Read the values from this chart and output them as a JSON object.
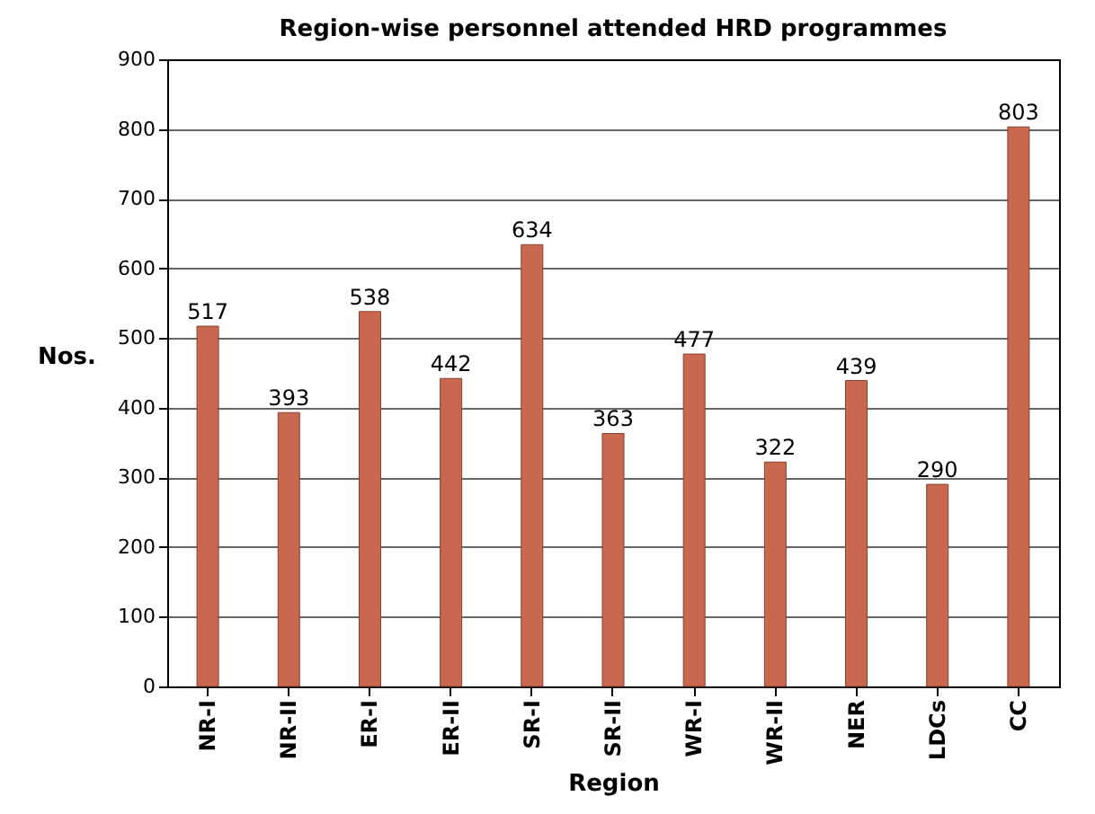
{
  "chart_data": {
    "type": "bar",
    "title": "Region-wise personnel attended HRD programmes",
    "xlabel": "Region",
    "ylabel": "Nos.",
    "categories": [
      "NR-I",
      "NR-II",
      "ER-I",
      "ER-II",
      "SR-I",
      "SR-II",
      "WR-I",
      "WR-II",
      "NER",
      "LDCs",
      "CC"
    ],
    "values": [
      517,
      393,
      538,
      442,
      634,
      363,
      477,
      322,
      439,
      290,
      803
    ],
    "color": "#c8684f",
    "ylim": [
      0,
      900
    ],
    "yticks": [
      0,
      100,
      200,
      300,
      400,
      500,
      600,
      700,
      800,
      900
    ],
    "grid": "y",
    "data_labels": true
  }
}
